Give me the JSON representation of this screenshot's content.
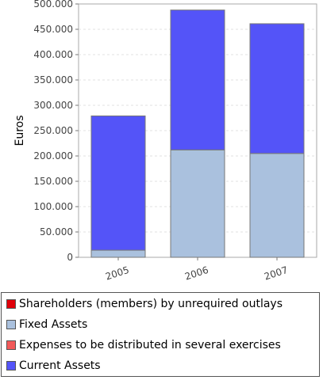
{
  "chart_data": {
    "type": "bar",
    "stacked": true,
    "categories": [
      "2005",
      "2006",
      "2007"
    ],
    "series": [
      {
        "name": "Shareholders (members) by unrequired outlays",
        "color": "#e0000a",
        "values": [
          0,
          0,
          0
        ]
      },
      {
        "name": "Fixed Assets",
        "color": "#aac1de",
        "values": [
          14000,
          212000,
          205000
        ]
      },
      {
        "name": "Expenses to be distributed in several exercises",
        "color": "#f25a5a",
        "values": [
          0,
          0,
          0
        ]
      },
      {
        "name": "Current Assets",
        "color": "#5454f8",
        "values": [
          265000,
          276000,
          256000
        ]
      }
    ],
    "title": "",
    "xlabel": "",
    "ylabel": "Euros",
    "ylim": [
      0,
      500000
    ],
    "yticks": [
      "0",
      "50.000",
      "100.000",
      "150.000",
      "200.000",
      "250.000",
      "300.000",
      "350.000",
      "400.000",
      "450.000",
      "500.000"
    ],
    "grid": true,
    "legend_position": "bottom"
  }
}
